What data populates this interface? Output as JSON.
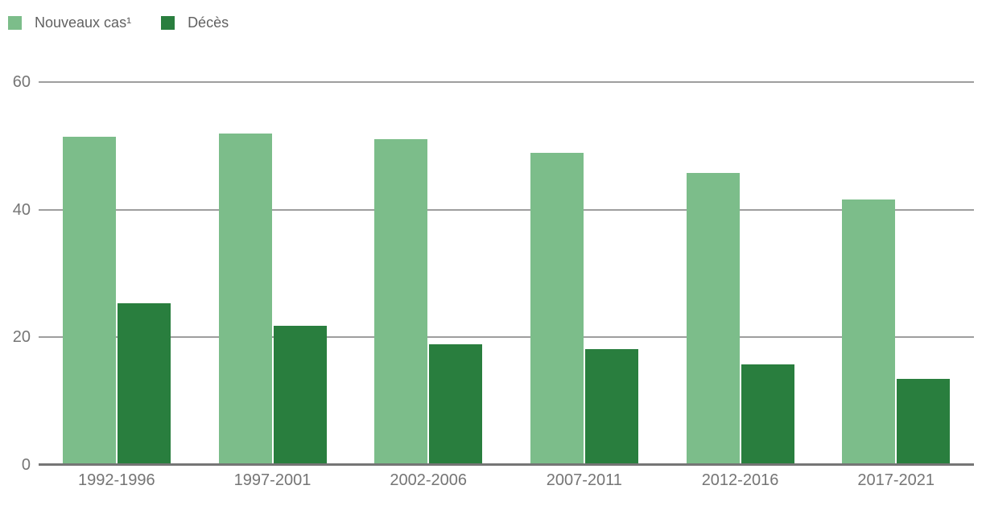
{
  "colors": {
    "series_light_green": "#7cbd8a",
    "series_dark_green": "#297e3e",
    "gridline": "#9e9e9e",
    "axis_line": "#757575",
    "axis_label_text": "#757575",
    "legend_text": "#616161",
    "background": "#ffffff"
  },
  "legend": {
    "position": "top-left",
    "items": [
      {
        "label": "Nouveaux cas¹",
        "color": "#7cbd8a"
      },
      {
        "label": "Décès",
        "color": "#297e3e"
      }
    ]
  },
  "chart_data": {
    "type": "bar",
    "title": "",
    "xlabel": "",
    "ylabel": "",
    "categories": [
      "1992-1996",
      "1997-2001",
      "2002-2006",
      "2007-2011",
      "2012-2016",
      "2017-2021"
    ],
    "series": [
      {
        "name": "Nouveaux cas¹",
        "color": "#7cbd8a",
        "values": [
          51.4,
          51.9,
          51.0,
          48.9,
          45.8,
          41.6
        ]
      },
      {
        "name": "Décès",
        "color": "#297e3e",
        "values": [
          25.3,
          21.8,
          18.9,
          18.2,
          15.8,
          13.5
        ]
      }
    ],
    "ylim": [
      0,
      60
    ],
    "yticks": [
      0,
      20,
      40,
      60
    ],
    "grid": true,
    "legend_position": "top-left"
  }
}
